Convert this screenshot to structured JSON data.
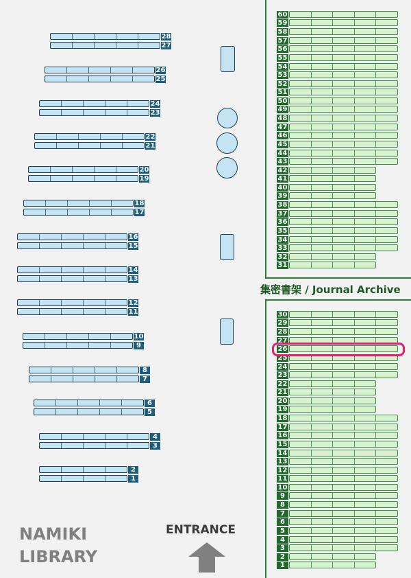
{
  "library_name": [
    "NAMIKI",
    "LIBRARY"
  ],
  "entrance_label": "ENTRANCE",
  "archive_title": "集密書架 / Journal Archive",
  "highlighted_shelf": {
    "area": "archive_lower",
    "number": "26",
    "color": "#e6206e"
  },
  "colors": {
    "stacks": "#c4e4f4",
    "stack_label": "#1c5d80",
    "archive": "#d8f2cf",
    "archive_label": "#1f6a2a"
  },
  "stacks": [
    {
      "number": "28",
      "sections": 5
    },
    {
      "number": "27",
      "sections": 5
    },
    {
      "number": "26",
      "sections": 5
    },
    {
      "number": "25",
      "sections": 5
    },
    {
      "number": "24",
      "sections": 5
    },
    {
      "number": "23",
      "sections": 5
    },
    {
      "number": "22",
      "sections": 5
    },
    {
      "number": "21",
      "sections": 5
    },
    {
      "number": "20",
      "sections": 5
    },
    {
      "number": "19",
      "sections": 5
    },
    {
      "number": "18",
      "sections": 5
    },
    {
      "number": "17",
      "sections": 5
    },
    {
      "number": "16",
      "sections": 5
    },
    {
      "number": "15",
      "sections": 5
    },
    {
      "number": "14",
      "sections": 5
    },
    {
      "number": "13",
      "sections": 5
    },
    {
      "number": "12",
      "sections": 5
    },
    {
      "number": "11",
      "sections": 5
    },
    {
      "number": "10",
      "sections": 5
    },
    {
      "number": "9",
      "sections": 5
    },
    {
      "number": "8",
      "sections": 5
    },
    {
      "number": "7",
      "sections": 5
    },
    {
      "number": "6",
      "sections": 5
    },
    {
      "number": "5",
      "sections": 5
    },
    {
      "number": "4",
      "sections": 5
    },
    {
      "number": "3",
      "sections": 5
    },
    {
      "number": "2",
      "sections": 4
    },
    {
      "number": "1",
      "sections": 4
    }
  ],
  "archive_upper": [
    {
      "number": "60",
      "sections": 5
    },
    {
      "number": "59",
      "sections": 5
    },
    {
      "number": "58",
      "sections": 5
    },
    {
      "number": "57",
      "sections": 5
    },
    {
      "number": "56",
      "sections": 5
    },
    {
      "number": "55",
      "sections": 5
    },
    {
      "number": "54",
      "sections": 5
    },
    {
      "number": "53",
      "sections": 5
    },
    {
      "number": "52",
      "sections": 5
    },
    {
      "number": "51",
      "sections": 5
    },
    {
      "number": "50",
      "sections": 5
    },
    {
      "number": "49",
      "sections": 5
    },
    {
      "number": "48",
      "sections": 5
    },
    {
      "number": "47",
      "sections": 5
    },
    {
      "number": "46",
      "sections": 5
    },
    {
      "number": "45",
      "sections": 5
    },
    {
      "number": "44",
      "sections": 5
    },
    {
      "number": "43",
      "sections": 5
    },
    {
      "number": "42",
      "sections": 4
    },
    {
      "number": "41",
      "sections": 4
    },
    {
      "number": "40",
      "sections": 4
    },
    {
      "number": "39",
      "sections": 4
    },
    {
      "number": "38",
      "sections": 5
    },
    {
      "number": "37",
      "sections": 5
    },
    {
      "number": "36",
      "sections": 5
    },
    {
      "number": "35",
      "sections": 5
    },
    {
      "number": "34",
      "sections": 5
    },
    {
      "number": "33",
      "sections": 5
    },
    {
      "number": "32",
      "sections": 4
    },
    {
      "number": "31",
      "sections": 4
    }
  ],
  "archive_lower": [
    {
      "number": "30",
      "sections": 5
    },
    {
      "number": "29",
      "sections": 5
    },
    {
      "number": "28",
      "sections": 5
    },
    {
      "number": "27",
      "sections": 5
    },
    {
      "number": "26",
      "sections": 5
    },
    {
      "number": "25",
      "sections": 5
    },
    {
      "number": "24",
      "sections": 5
    },
    {
      "number": "23",
      "sections": 5
    },
    {
      "number": "22",
      "sections": 4
    },
    {
      "number": "21",
      "sections": 4
    },
    {
      "number": "20",
      "sections": 4
    },
    {
      "number": "19",
      "sections": 4
    },
    {
      "number": "18",
      "sections": 5
    },
    {
      "number": "17",
      "sections": 5
    },
    {
      "number": "16",
      "sections": 5
    },
    {
      "number": "15",
      "sections": 5
    },
    {
      "number": "14",
      "sections": 5
    },
    {
      "number": "13",
      "sections": 5
    },
    {
      "number": "12",
      "sections": 5
    },
    {
      "number": "11",
      "sections": 5
    },
    {
      "number": "10",
      "sections": 5
    },
    {
      "number": "9",
      "sections": 5
    },
    {
      "number": "8",
      "sections": 5
    },
    {
      "number": "7",
      "sections": 5
    },
    {
      "number": "6",
      "sections": 5
    },
    {
      "number": "5",
      "sections": 5
    },
    {
      "number": "4",
      "sections": 5
    },
    {
      "number": "3",
      "sections": 5
    },
    {
      "number": "2",
      "sections": 4
    },
    {
      "number": "1",
      "sections": 4
    }
  ]
}
